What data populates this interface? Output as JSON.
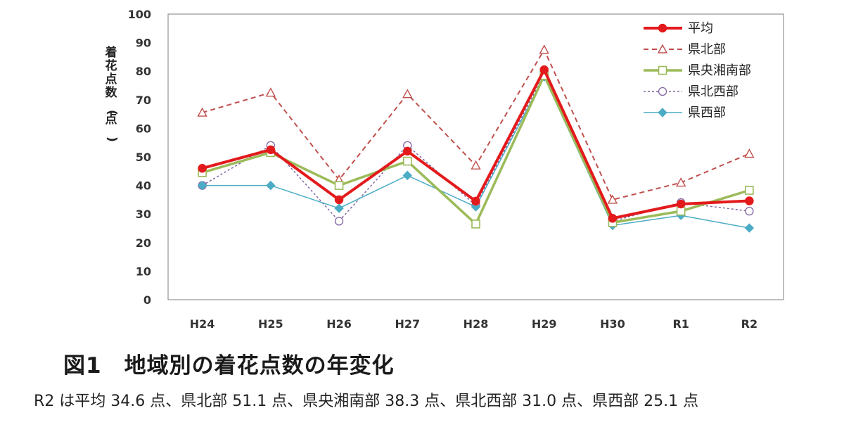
{
  "chart_data": {
    "type": "line",
    "categories": [
      "H24",
      "H25",
      "H26",
      "H27",
      "H28",
      "H29",
      "H30",
      "R1",
      "R2"
    ],
    "ylim": [
      0,
      100
    ],
    "yticks": [
      0,
      10,
      20,
      30,
      40,
      50,
      60,
      70,
      80,
      90,
      100
    ],
    "ylabel": "着花点数(点)",
    "xlabel": "",
    "grid": false,
    "legend_position": "top-right",
    "series": [
      {
        "name": "平均",
        "color": "#e31a1c",
        "style": "solid-thick",
        "marker": "circle-filled",
        "values": [
          46,
          52.5,
          35,
          52,
          34.5,
          80.5,
          28.5,
          33.5,
          34.6
        ]
      },
      {
        "name": "県北部",
        "color": "#c0504d",
        "style": "dashed",
        "marker": "triangle-open",
        "values": [
          65.5,
          72.5,
          42,
          72,
          47,
          87.5,
          35,
          41,
          51.1
        ]
      },
      {
        "name": "県央湘南部",
        "color": "#9bbb59",
        "style": "solid-thick",
        "marker": "square-open",
        "values": [
          44.5,
          51.5,
          40,
          48.5,
          26.5,
          78.5,
          27,
          31,
          38.3
        ]
      },
      {
        "name": "県北西部",
        "color": "#8064a2",
        "style": "dotted",
        "marker": "circle-open",
        "values": [
          40,
          54,
          27.5,
          54,
          33,
          79,
          27.5,
          34,
          31.0
        ]
      },
      {
        "name": "県西部",
        "color": "#4bacc6",
        "style": "solid",
        "marker": "diamond-filled",
        "values": [
          40,
          40,
          32,
          43.5,
          32.5,
          78,
          26,
          29.5,
          25.1
        ]
      }
    ]
  },
  "caption": {
    "title": "図1　地域別の着花点数の年変化",
    "note": "R2 は平均 34.6 点、県北部 51.1 点、県央湘南部 38.3 点、県北西部 31.0 点、県西部 25.1 点"
  }
}
